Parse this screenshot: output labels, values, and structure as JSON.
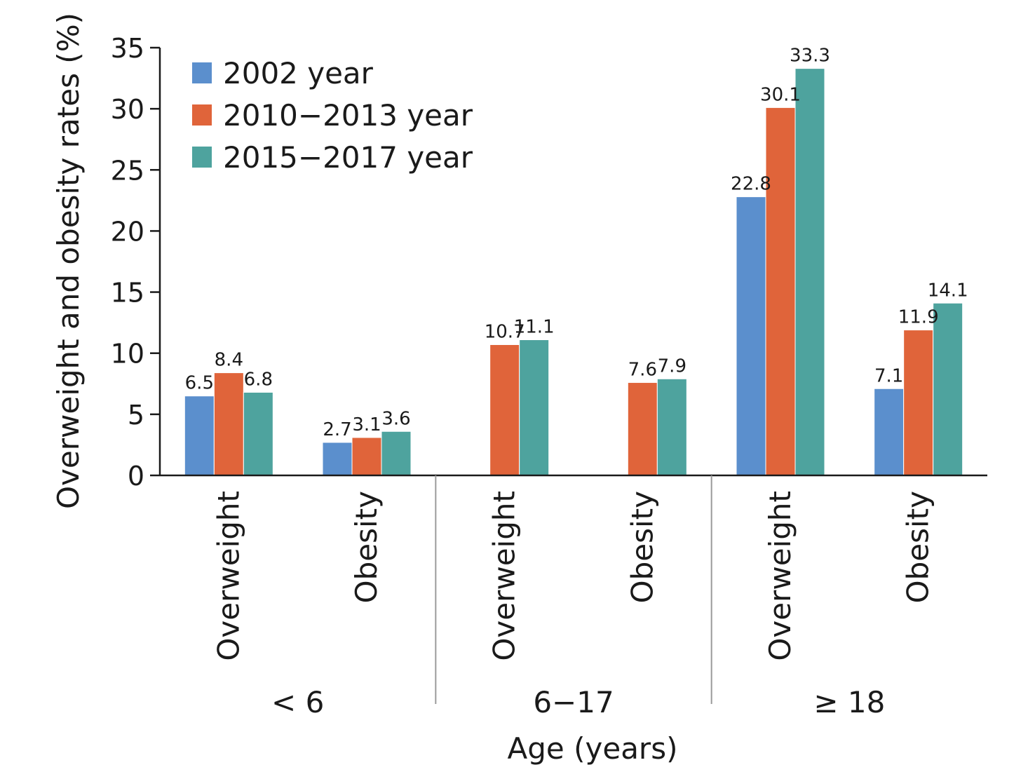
{
  "chart_data": {
    "type": "bar",
    "ylabel": "Overweight and obesity rates (%)",
    "xlabel": "Age (years)",
    "ylim": [
      0,
      35
    ],
    "yticks": [
      0,
      5,
      10,
      15,
      20,
      25,
      30,
      35
    ],
    "grid": false,
    "legend_position": "top-left",
    "groups": [
      {
        "label": "< 6",
        "categories": [
          "Overweight",
          "Obesity"
        ]
      },
      {
        "label": "6−17",
        "categories": [
          "Overweight",
          "Obesity"
        ]
      },
      {
        "label": "≥ 18",
        "categories": [
          "Overweight",
          "Obesity"
        ]
      }
    ],
    "series": [
      {
        "name": "2002 year",
        "color": "#5b8fcd",
        "values": [
          6.5,
          2.7,
          null,
          null,
          22.8,
          7.1
        ]
      },
      {
        "name": "2010−2013 year",
        "color": "#e0643a",
        "values": [
          8.4,
          3.1,
          10.7,
          7.6,
          30.1,
          11.9
        ]
      },
      {
        "name": "2015−2017 year",
        "color": "#4ea39e",
        "values": [
          6.8,
          3.6,
          11.1,
          7.9,
          33.3,
          14.1
        ]
      }
    ]
  }
}
